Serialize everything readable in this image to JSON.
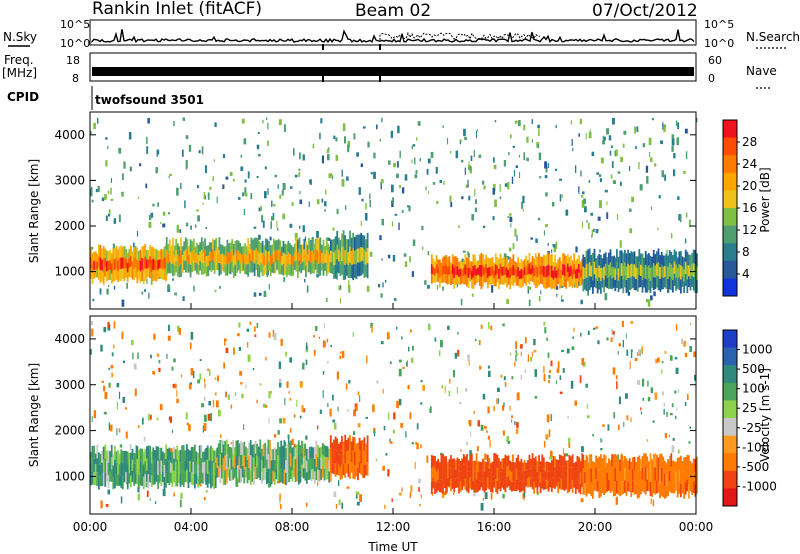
{
  "header": {
    "station": "Rankin Inlet (fitACF)",
    "beam": "Beam 02",
    "date": "07/Oct/2012"
  },
  "strips": {
    "nsky_label": "N.Sky",
    "nsearch_label": "N.Search",
    "freq_label": "Freq.",
    "freq_unit": "[MHz]",
    "nave_label": "Nave",
    "cpid_label": "CPID",
    "cpid_value": "twofsound 3501",
    "nsky_ticks_left": [
      "10^5",
      "10^0"
    ],
    "nsky_ticks_right": [
      "10^5",
      "10^0"
    ],
    "freq_ticks_left": [
      "18",
      "8"
    ],
    "freq_ticks_right": [
      "60",
      "0"
    ]
  },
  "chart_data": [
    {
      "type": "heatmap",
      "name": "power",
      "xlabel": "",
      "ylabel": "Slant Range [km]",
      "x_range_hours": [
        0,
        24
      ],
      "ylim": [
        180,
        4500
      ],
      "yticks": [
        1000,
        2000,
        3000,
        4000
      ],
      "colorbar": {
        "label": "Power [dB]",
        "ticks": [
          "28",
          "24",
          "20",
          "16",
          "12",
          "8",
          "4"
        ],
        "colors": [
          "#f0121c",
          "#ff4d00",
          "#ff7b00",
          "#ffa500",
          "#eec21a",
          "#7fbf43",
          "#4e9e70",
          "#2a7d8c",
          "#26599a",
          "#1133dd"
        ]
      },
      "bands": [
        {
          "from_h": 0.0,
          "to_h": 3.0,
          "r0": 800,
          "r1": 1500,
          "value_db": 24
        },
        {
          "from_h": 3.0,
          "to_h": 9.5,
          "r0": 950,
          "r1": 1650,
          "value_db": 18
        },
        {
          "from_h": 9.5,
          "to_h": 11.0,
          "r0": 900,
          "r1": 1800,
          "value_db": 14
        },
        {
          "from_h": 13.5,
          "to_h": 19.5,
          "r0": 700,
          "r1": 1300,
          "value_db": 26
        },
        {
          "from_h": 19.5,
          "to_h": 24.0,
          "r0": 600,
          "r1": 1400,
          "value_db": 12
        }
      ]
    },
    {
      "type": "heatmap",
      "name": "velocity",
      "xlabel": "Time UT",
      "ylabel": "Slant Range [km]",
      "x_range_hours": [
        0,
        24
      ],
      "xticks": [
        "00:00",
        "04:00",
        "08:00",
        "12:00",
        "16:00",
        "20:00",
        "00:00"
      ],
      "ylim": [
        180,
        4500
      ],
      "yticks": [
        1000,
        2000,
        3000,
        4000
      ],
      "colorbar": {
        "label": "Velocity [m s-1]",
        "ticks": [
          "1000",
          "500",
          "100",
          "25",
          "-25",
          "-100",
          "-500",
          "-1000"
        ],
        "colors": [
          "#1e3ec8",
          "#2a62b0",
          "#2f8a7c",
          "#4aa55a",
          "#8ed14a",
          "#c8c8c8",
          "#ff9a1f",
          "#ff7a00",
          "#f04410",
          "#e01818"
        ]
      },
      "bands": [
        {
          "from_h": 0.0,
          "to_h": 5.0,
          "r0": 800,
          "r1": 1600,
          "value_ms": 150
        },
        {
          "from_h": 5.0,
          "to_h": 9.5,
          "r0": 900,
          "r1": 1700,
          "value_ms": 80
        },
        {
          "from_h": 9.5,
          "to_h": 11.0,
          "r0": 1000,
          "r1": 1800,
          "value_ms": -300
        },
        {
          "from_h": 13.5,
          "to_h": 19.5,
          "r0": 700,
          "r1": 1400,
          "value_ms": -400
        },
        {
          "from_h": 19.5,
          "to_h": 24.0,
          "r0": 600,
          "r1": 1400,
          "value_ms": -200
        }
      ]
    }
  ]
}
